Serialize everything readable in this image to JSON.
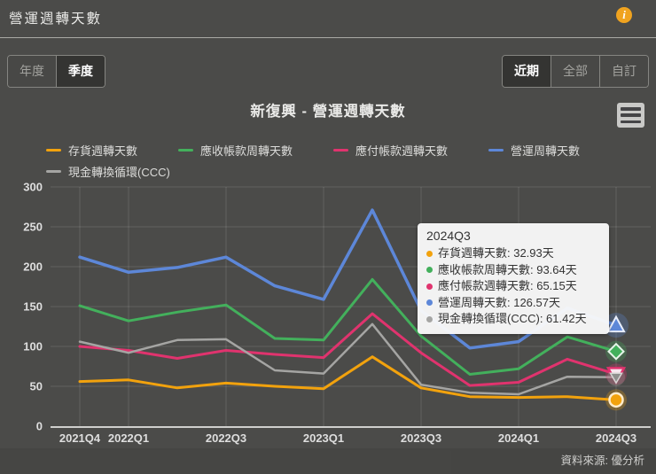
{
  "header": {
    "title": "營運週轉天數"
  },
  "icons": {
    "info": "i"
  },
  "toolbar": {
    "period_buttons": [
      {
        "label": "年度",
        "active": false
      },
      {
        "label": "季度",
        "active": true
      }
    ],
    "range_buttons": [
      {
        "label": "近期",
        "active": true
      },
      {
        "label": "全部",
        "active": false
      },
      {
        "label": "自訂",
        "active": false
      }
    ]
  },
  "chart": {
    "title": "新復興 - 營運週轉天數",
    "source": "資料來源: 優分析"
  },
  "tooltip": {
    "title": "2024Q3",
    "items": [
      {
        "label": "存貨週轉天數",
        "value": "32.93天",
        "color": "#f2a20d"
      },
      {
        "label": "應收帳款周轉天數",
        "value": "93.64天",
        "color": "#43b05c"
      },
      {
        "label": "應付帳款週轉天數",
        "value": "65.15天",
        "color": "#e0336e"
      },
      {
        "label": "營運周轉天數",
        "value": "126.57天",
        "color": "#5d87d8"
      },
      {
        "label": "現金轉換循環(CCC)",
        "value": "61.42天",
        "color": "#a5a5a3"
      }
    ]
  },
  "chart_data": {
    "type": "line",
    "title": "新復興 - 營運週轉天數",
    "categories": [
      "2021Q4",
      "2022Q1",
      "2022Q2",
      "2022Q3",
      "2022Q4",
      "2023Q1",
      "2023Q2",
      "2023Q3",
      "2023Q4",
      "2024Q1",
      "2024Q2",
      "2024Q3"
    ],
    "x_tick_indices": [
      0,
      1,
      3,
      5,
      7,
      9,
      11
    ],
    "yticks": [
      0,
      50,
      100,
      150,
      200,
      250,
      300
    ],
    "ylim": [
      0,
      300
    ],
    "grid": true,
    "legend_position": "top",
    "hover_category": "2024Q3",
    "series": [
      {
        "name": "存貨週轉天數",
        "color": "#f2a20d",
        "marker": "circle",
        "values": [
          56,
          58,
          48,
          54,
          50,
          47,
          87,
          48,
          37,
          36,
          37,
          32.93
        ]
      },
      {
        "name": "應收帳款周轉天數",
        "color": "#43b05c",
        "marker": "diamond",
        "values": [
          151,
          132,
          143,
          152,
          110,
          108,
          184,
          113,
          65,
          72,
          112,
          93.64
        ]
      },
      {
        "name": "應付帳款週轉天數",
        "color": "#e0336e",
        "marker": "triangle-down",
        "values": [
          100,
          95,
          85,
          95,
          90,
          86,
          141,
          92,
          51,
          55,
          84,
          65.15
        ]
      },
      {
        "name": "營運周轉天數",
        "color": "#5d87d8",
        "marker": "triangle-up",
        "values": [
          212,
          193,
          199,
          212,
          176,
          159,
          271,
          145,
          98,
          106,
          148,
          126.57
        ]
      },
      {
        "name": "現金轉換循環(CCC)",
        "color": "#a5a5a3",
        "marker": "triangle-down",
        "values": [
          106,
          92,
          108,
          109,
          70,
          66,
          128,
          52,
          42,
          40,
          62,
          61.42
        ]
      }
    ]
  }
}
